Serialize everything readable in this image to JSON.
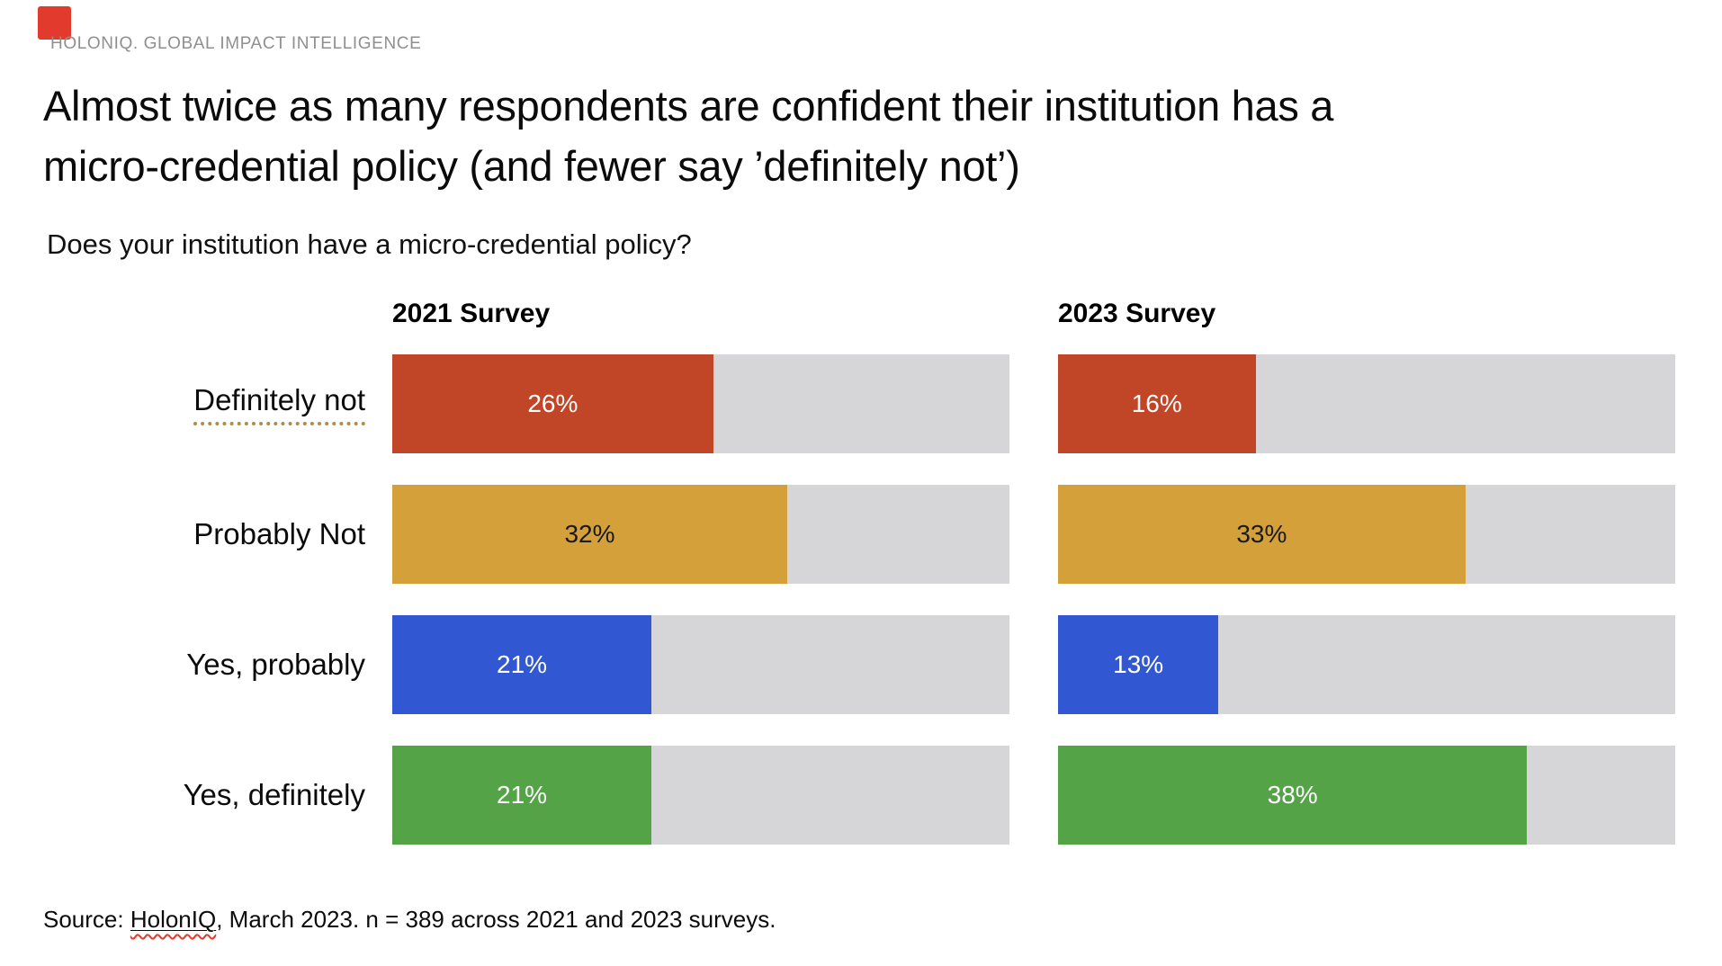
{
  "brand": {
    "logo_color": "#E23B2E",
    "name": "HOLONIQ. GLOBAL IMPACT INTELLIGENCE"
  },
  "title": {
    "line1": "Almost twice as many respondents are confident their institution has a",
    "line2": "micro-credential policy (and fewer say ’definitely not’)"
  },
  "question": "Does your institution have a micro-credential policy?",
  "source": {
    "prefix": "Source: ",
    "org": "HolonIQ",
    "suffix": ", March 2023. n = 389 across 2021 and 2023 surveys."
  },
  "chart_data": {
    "type": "bar",
    "orientation": "horizontal",
    "title": "Does your institution have a micro-credential policy?",
    "categories": [
      "Definitely not",
      "Probably Not",
      "Yes, probably",
      "Yes, definitely"
    ],
    "series": [
      {
        "name": "2021 Survey",
        "values": [
          26,
          32,
          21,
          21
        ]
      },
      {
        "name": "2023 Survey",
        "values": [
          16,
          33,
          13,
          38
        ]
      }
    ],
    "value_suffix": "%",
    "axis_max_percent": 50,
    "grid": false,
    "legend": "column-headers-above",
    "bar_colors": [
      "#C14527",
      "#D3A039",
      "#3158D2",
      "#54A346"
    ],
    "value_text_colors": [
      "#ffffff",
      "#1a1a1a",
      "#ffffff",
      "#ffffff"
    ],
    "track_color": "#D6D6D8",
    "annotations": {
      "category_0_underline": "gold-dotted",
      "source_org_underline": "red-wavy-spellcheck"
    }
  }
}
